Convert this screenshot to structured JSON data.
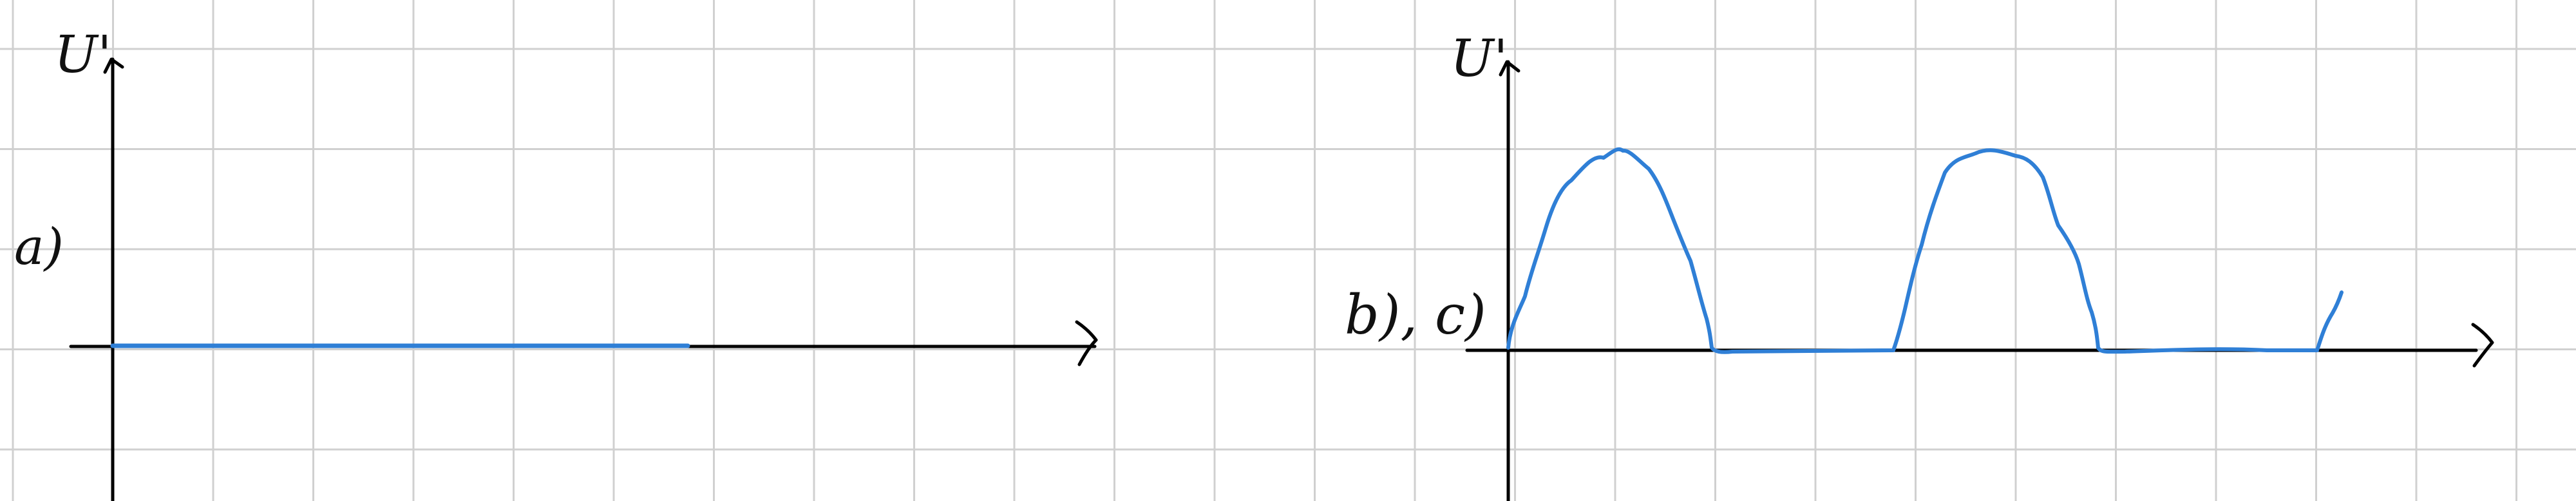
{
  "colors": {
    "grid": "#d0d0d0",
    "axis": "#000000",
    "curve": "#2f7fd6",
    "background": "#ffffff"
  },
  "panel_a": {
    "part_label": "a)",
    "y_axis_label": "U'"
  },
  "panel_b": {
    "part_label": "b), c)",
    "y_axis_label": "U'"
  }
}
